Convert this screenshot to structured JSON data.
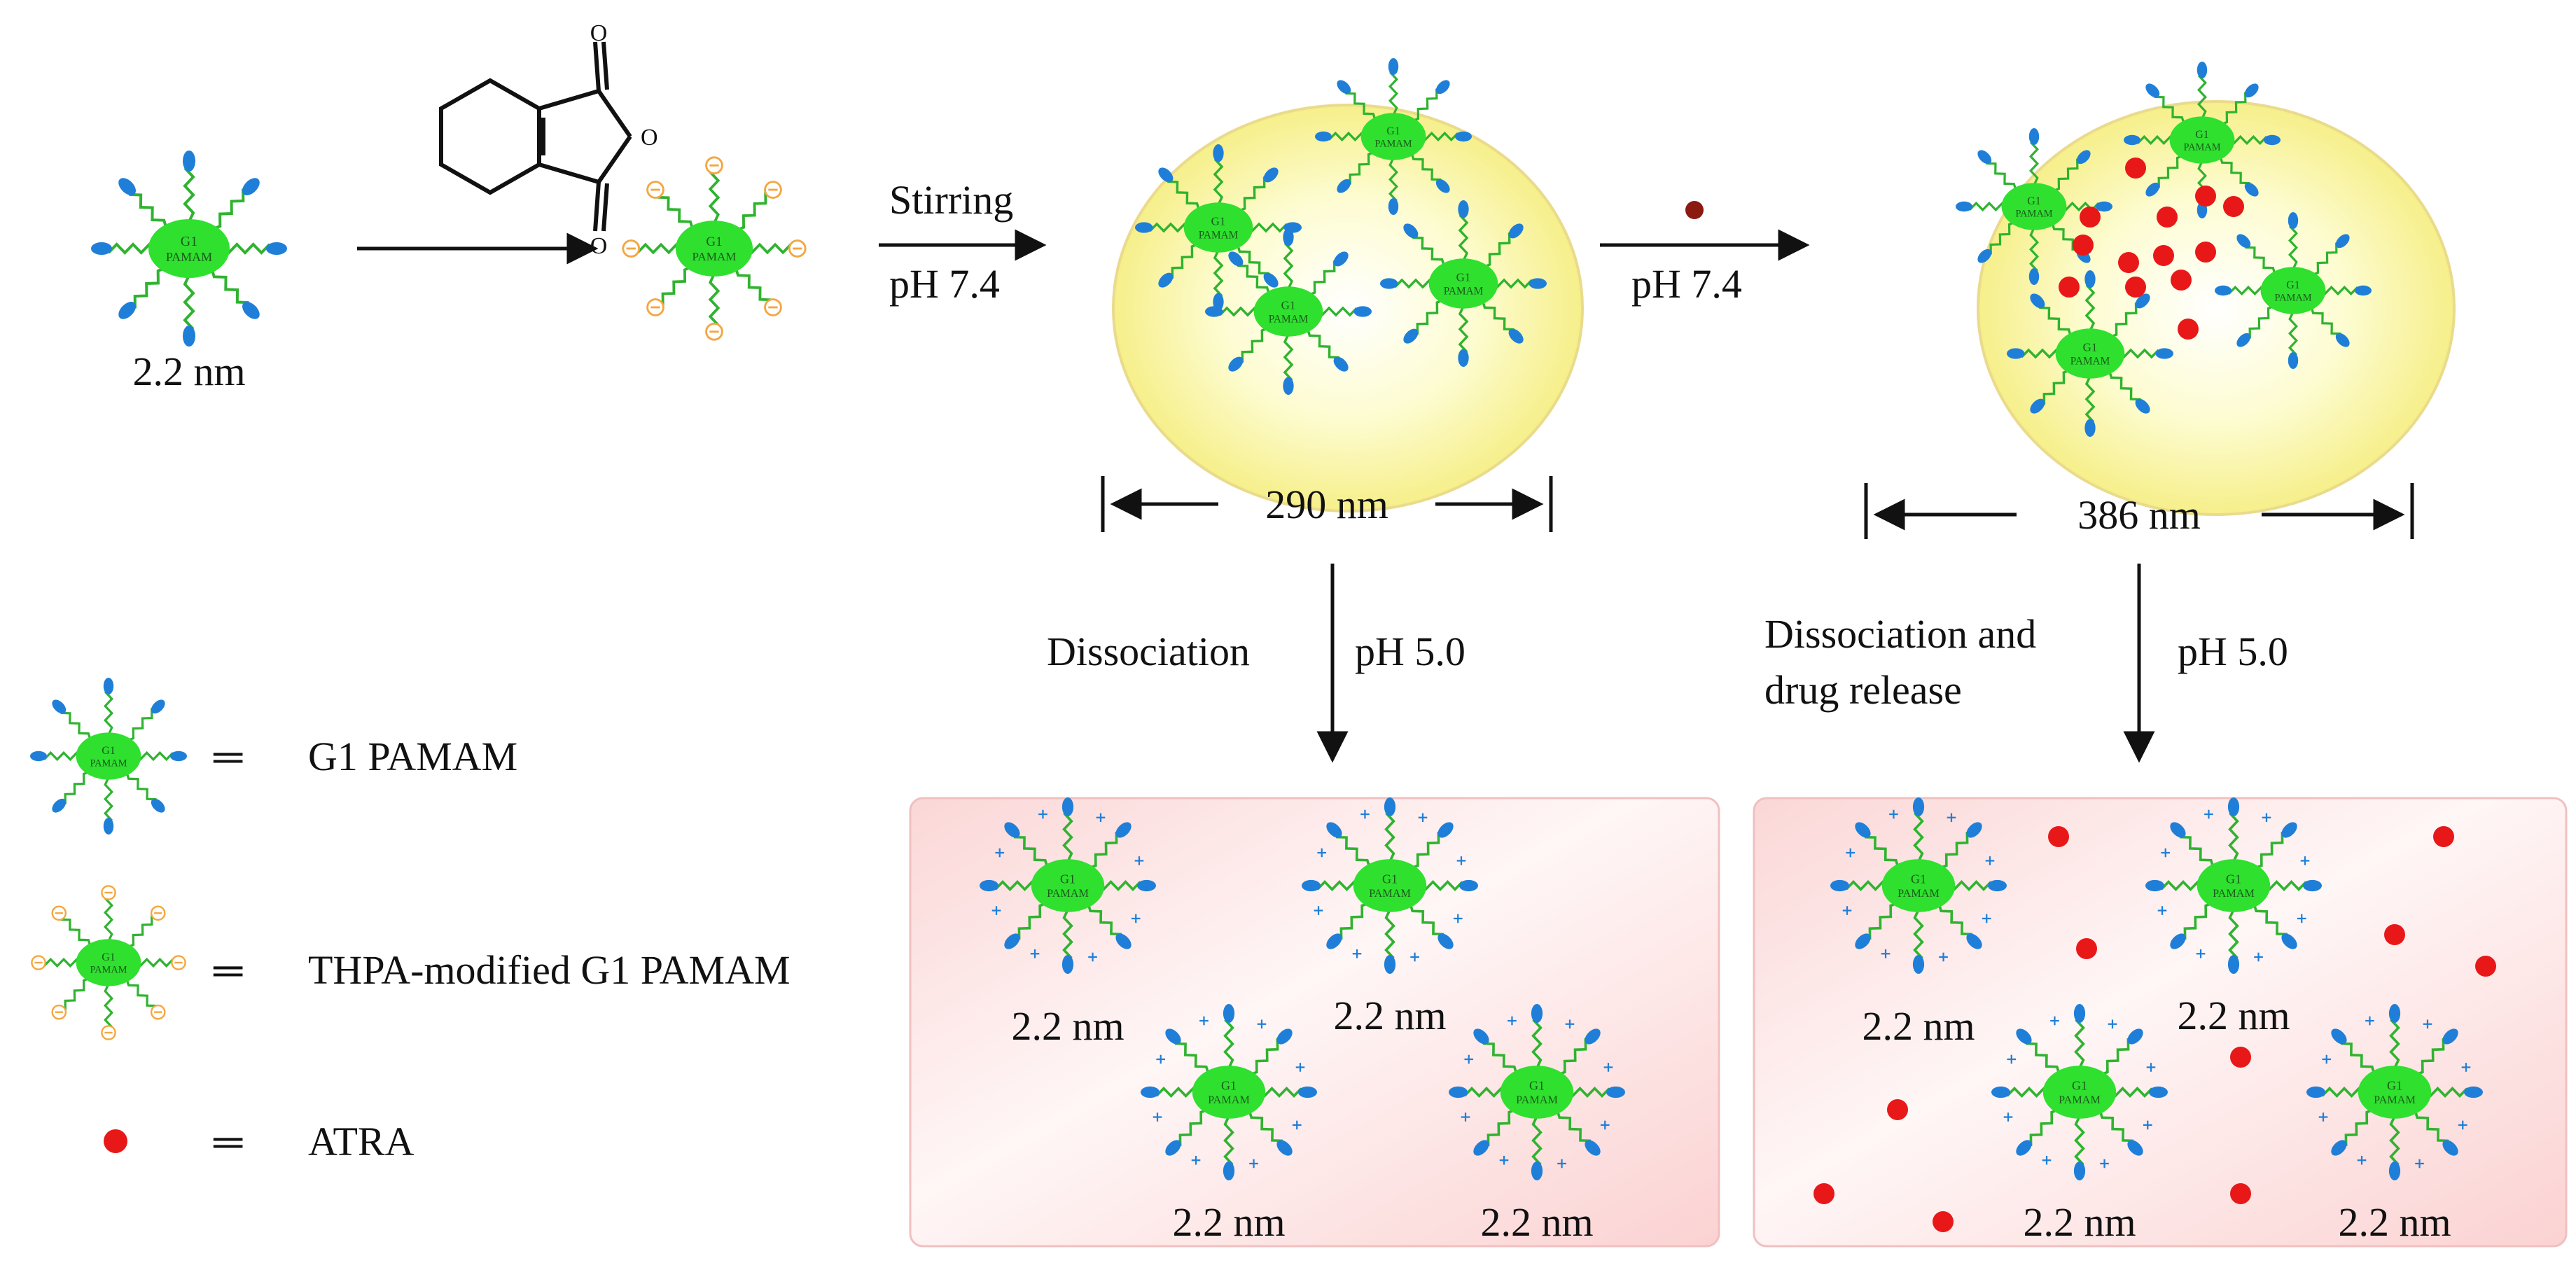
{
  "figure": {
    "core_text": "G1",
    "core_text2": "PAMAM",
    "negative_symbol": "⊖",
    "positive_symbol": "+",
    "colors": {
      "core": "#2fe02f",
      "arm": "#2fb32f",
      "tip": "#1f7fd8",
      "negative": "#f4a640",
      "drug": "#e81818",
      "drug_dark": "#8b1a10",
      "yellow_fill": "#fbfab0",
      "yellow_edge": "#e5d88a",
      "pink_fill": "#fde4e4"
    }
  },
  "steps": {
    "size_start": "2.2 nm",
    "stirring": "Stirring",
    "ph_74_a": "pH 7.4",
    "ph_74_b": "pH 7.4",
    "size_290": "290 nm",
    "size_386": "386 nm",
    "dissociation": "Dissociation",
    "ph_50_a": "pH 5.0",
    "dissociation_and": "Dissociation and",
    "drug_release": "drug release",
    "ph_50_b": "pH 5.0"
  },
  "products": {
    "left_sizes": [
      "2.2 nm",
      "2.2 nm",
      "2.2 nm",
      "2.2 nm"
    ],
    "right_sizes": [
      "2.2 nm",
      "2.2 nm",
      "2.2 nm",
      "2.2 nm"
    ]
  },
  "legend": {
    "equals_symbol": "═",
    "items": [
      {
        "label": "G1 PAMAM"
      },
      {
        "label": "THPA-modified G1 PAMAM"
      },
      {
        "label": "ATRA"
      }
    ]
  }
}
